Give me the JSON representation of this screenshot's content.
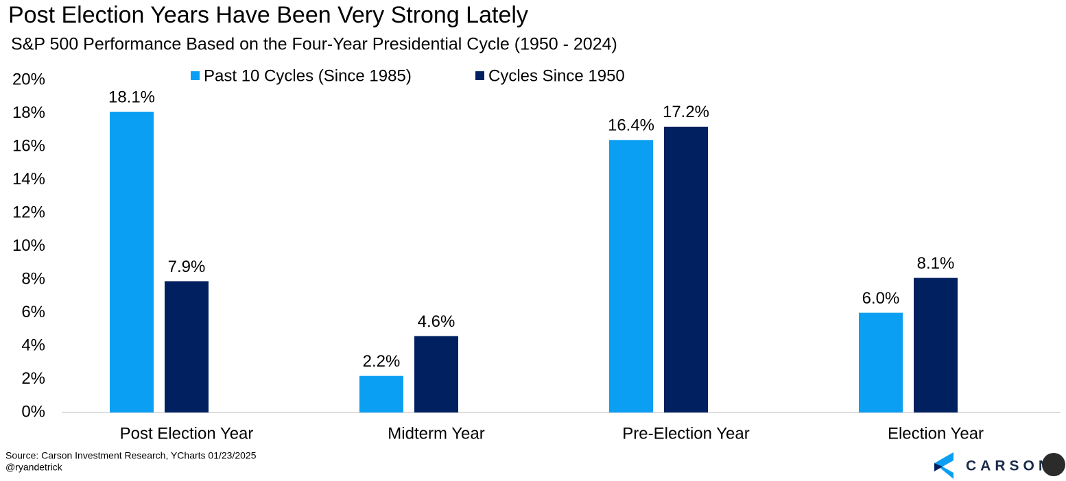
{
  "chart_data": {
    "type": "bar",
    "title": "Post Election Years Have Been Very Strong Lately",
    "subtitle": "S&P 500 Performance Based on the Four-Year Presidential Cycle (1950 - 2024)",
    "categories": [
      "Post Election Year",
      "Midterm Year",
      "Pre-Election Year",
      "Election Year"
    ],
    "series": [
      {
        "name": "Past 10 Cycles (Since 1985)",
        "color": "#0a9ff2",
        "values": [
          18.1,
          2.2,
          16.4,
          6.0
        ],
        "value_labels": [
          "18.1%",
          "2.2%",
          "16.4%",
          "6.0%"
        ]
      },
      {
        "name": "Cycles Since 1950",
        "color": "#002060",
        "values": [
          7.9,
          4.6,
          17.2,
          8.1
        ],
        "value_labels": [
          "7.9%",
          "4.6%",
          "17.2%",
          "8.1%"
        ]
      }
    ],
    "ylim": [
      0,
      20
    ],
    "yticks": [
      {
        "value": 0,
        "label": "0%"
      },
      {
        "value": 2,
        "label": "2%"
      },
      {
        "value": 4,
        "label": "4%"
      },
      {
        "value": 6,
        "label": "6%"
      },
      {
        "value": 8,
        "label": "8%"
      },
      {
        "value": 10,
        "label": "10%"
      },
      {
        "value": 12,
        "label": "12%"
      },
      {
        "value": 14,
        "label": "14%"
      },
      {
        "value": 16,
        "label": "16%"
      },
      {
        "value": 18,
        "label": "18%"
      },
      {
        "value": 20,
        "label": "20%"
      }
    ],
    "grid": false,
    "legend": "top",
    "source": "Source: Carson Investment Research, YCharts 01/23/2025",
    "handle": "@ryandetrick",
    "logo": "CARSON"
  }
}
